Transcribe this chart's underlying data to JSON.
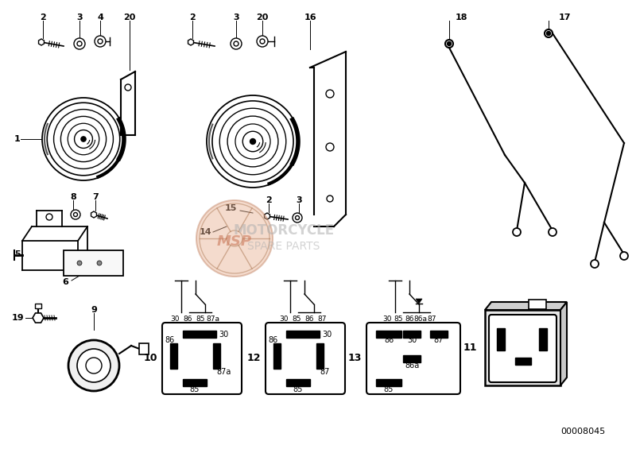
{
  "background_color": "#ffffff",
  "watermark_text1": "MOTORCYCLE",
  "watermark_text2": "SPARE PARTS",
  "watermark_msp": "MSP",
  "catalog_number": "00008045",
  "fig_width": 8.0,
  "fig_height": 5.65,
  "dpi": 100,
  "line_color": "#000000",
  "gray_light": "#cccccc",
  "wm_circle_color": "#e8b090",
  "wm_text_color": "#b0b0b0",
  "wm_msp_color": "#c87050"
}
